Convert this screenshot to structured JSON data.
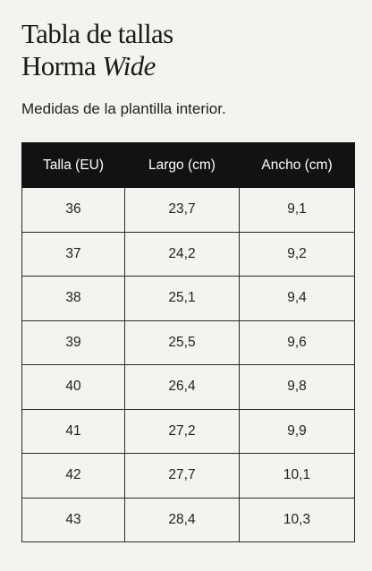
{
  "heading": {
    "line1": "Tabla de tallas",
    "line2_regular": "Horma ",
    "line2_italic": "Wide"
  },
  "subtitle": "Medidas de la plantilla interior.",
  "table": {
    "headers": [
      "Talla (EU)",
      "Largo (cm)",
      "Ancho (cm)"
    ],
    "rows": [
      [
        "36",
        "23,7",
        "9,1"
      ],
      [
        "37",
        "24,2",
        "9,2"
      ],
      [
        "38",
        "25,1",
        "9,4"
      ],
      [
        "39",
        "25,5",
        "9,6"
      ],
      [
        "40",
        "26,4",
        "9,8"
      ],
      [
        "41",
        "27,2",
        "9,9"
      ],
      [
        "42",
        "27,7",
        "10,1"
      ],
      [
        "43",
        "28,4",
        "10,3"
      ]
    ]
  },
  "colors": {
    "background": "#f5f3ef",
    "header_background": "#121212",
    "header_text": "#ffffff",
    "border": "#2a2a2a"
  }
}
